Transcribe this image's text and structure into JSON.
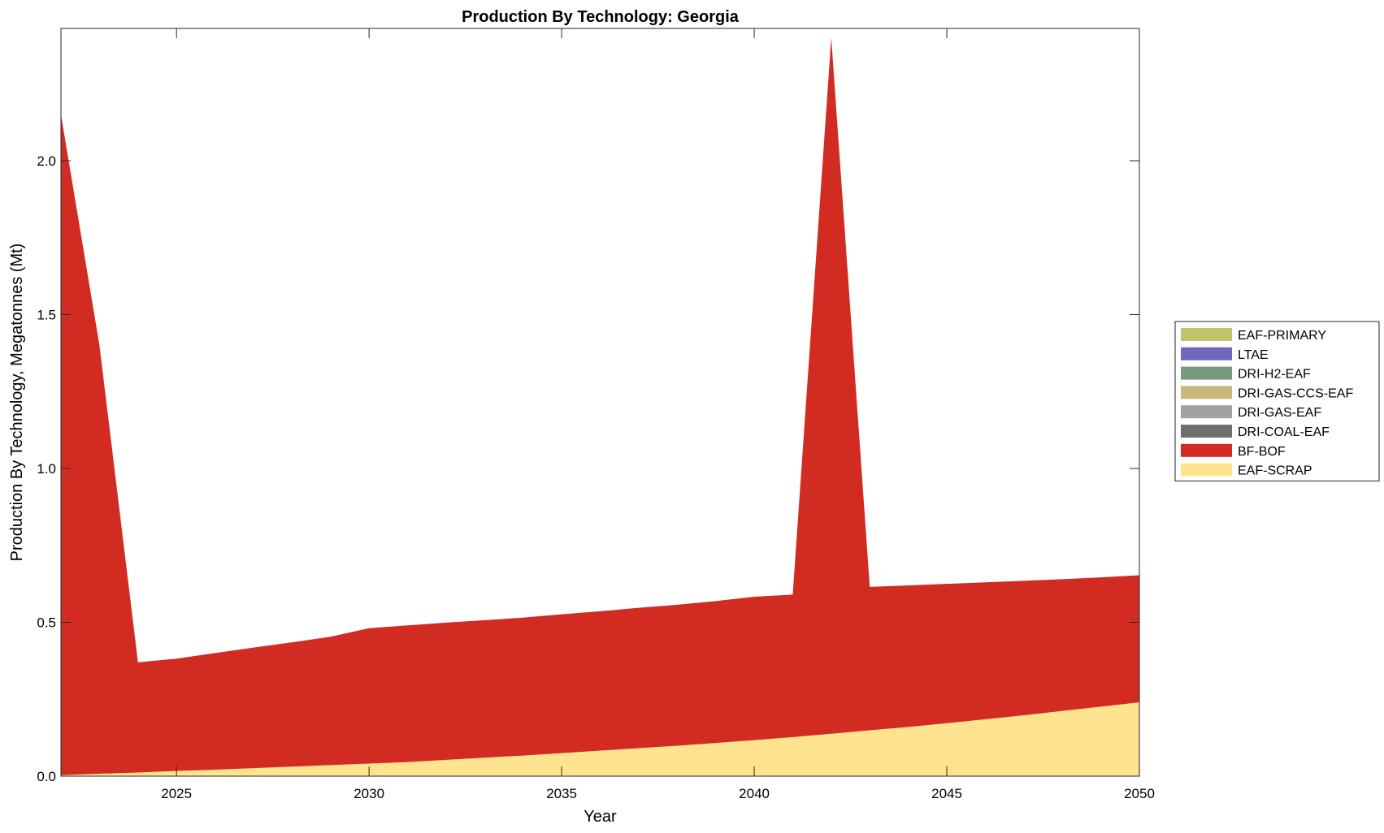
{
  "chart_data": {
    "type": "area",
    "stacked": true,
    "title": "Production By Technology: Georgia",
    "xlabel": "Year",
    "ylabel": "Production By Technology, Megatonnes (Mt)",
    "xlim": [
      2022,
      2050
    ],
    "ylim": [
      0,
      2.43
    ],
    "xticks": [
      2025,
      2030,
      2035,
      2040,
      2045,
      2050
    ],
    "xtick_labels": [
      "2025",
      "2030",
      "2035",
      "2040",
      "2045",
      "2050"
    ],
    "yticks": [
      0,
      0.5,
      1,
      1.5,
      2
    ],
    "ytick_labels": [
      "0.0",
      "0.5",
      "1.0",
      "1.5",
      "2.0"
    ],
    "legend_position": "right",
    "x": [
      2022,
      2023,
      2024,
      2025,
      2026,
      2027,
      2028,
      2029,
      2030,
      2031,
      2032,
      2033,
      2034,
      2035,
      2036,
      2037,
      2038,
      2039,
      2040,
      2041,
      2042,
      2043,
      2044,
      2045,
      2046,
      2047,
      2048,
      2049,
      2050
    ],
    "series": [
      {
        "name": "EAF-SCRAP",
        "color": "#FFE38F",
        "values": [
          0.003,
          0.008,
          0.012,
          0.017,
          0.021,
          0.026,
          0.031,
          0.036,
          0.041,
          0.046,
          0.053,
          0.06,
          0.067,
          0.075,
          0.083,
          0.091,
          0.099,
          0.108,
          0.117,
          0.127,
          0.138,
          0.149,
          0.16,
          0.172,
          0.185,
          0.198,
          0.212,
          0.226,
          0.24
        ]
      },
      {
        "name": "BF-BOF",
        "color": "#D22B22",
        "values": [
          2.147,
          1.392,
          0.358,
          0.365,
          0.379,
          0.392,
          0.404,
          0.417,
          0.44,
          0.444,
          0.446,
          0.447,
          0.448,
          0.451,
          0.453,
          0.456,
          0.458,
          0.461,
          0.466,
          0.463,
          2.262,
          0.466,
          0.46,
          0.453,
          0.445,
          0.437,
          0.428,
          0.42,
          0.413
        ]
      },
      {
        "name": "DRI-COAL-EAF",
        "color": "#6E6E6E",
        "values": [
          0,
          0,
          0,
          0,
          0,
          0,
          0,
          0,
          0,
          0,
          0,
          0,
          0,
          0,
          0,
          0,
          0,
          0,
          0,
          0,
          0,
          0,
          0,
          0,
          0,
          0,
          0,
          0,
          0
        ]
      },
      {
        "name": "DRI-GAS-EAF",
        "color": "#A0A0A0",
        "values": [
          0,
          0,
          0,
          0,
          0,
          0,
          0,
          0,
          0,
          0,
          0,
          0,
          0,
          0,
          0,
          0,
          0,
          0,
          0,
          0,
          0,
          0,
          0,
          0,
          0,
          0,
          0,
          0,
          0
        ]
      },
      {
        "name": "DRI-GAS-CCS-EAF",
        "color": "#C6B97A",
        "values": [
          0,
          0,
          0,
          0,
          0,
          0,
          0,
          0,
          0,
          0,
          0,
          0,
          0,
          0,
          0,
          0,
          0,
          0,
          0,
          0,
          0,
          0,
          0,
          0,
          0,
          0,
          0,
          0,
          0
        ]
      },
      {
        "name": "DRI-H2-EAF",
        "color": "#769A7A",
        "values": [
          0,
          0,
          0,
          0,
          0,
          0,
          0,
          0,
          0,
          0,
          0,
          0,
          0,
          0,
          0,
          0,
          0,
          0,
          0,
          0,
          0,
          0,
          0,
          0,
          0,
          0,
          0,
          0,
          0
        ]
      },
      {
        "name": "LTAE",
        "color": "#7366BD",
        "values": [
          0,
          0,
          0,
          0,
          0,
          0,
          0,
          0,
          0,
          0,
          0,
          0,
          0,
          0,
          0,
          0,
          0,
          0,
          0,
          0,
          0,
          0,
          0,
          0,
          0,
          0,
          0,
          0,
          0
        ]
      },
      {
        "name": "EAF-PRIMARY",
        "color": "#BFC46C",
        "values": [
          0,
          0,
          0,
          0,
          0,
          0,
          0,
          0,
          0,
          0,
          0,
          0,
          0,
          0,
          0,
          0,
          0,
          0,
          0,
          0,
          0,
          0,
          0,
          0,
          0,
          0,
          0,
          0,
          0
        ]
      }
    ],
    "legend_order": [
      "EAF-PRIMARY",
      "LTAE",
      "DRI-H2-EAF",
      "DRI-GAS-CCS-EAF",
      "DRI-GAS-EAF",
      "DRI-COAL-EAF",
      "BF-BOF",
      "EAF-SCRAP"
    ]
  }
}
